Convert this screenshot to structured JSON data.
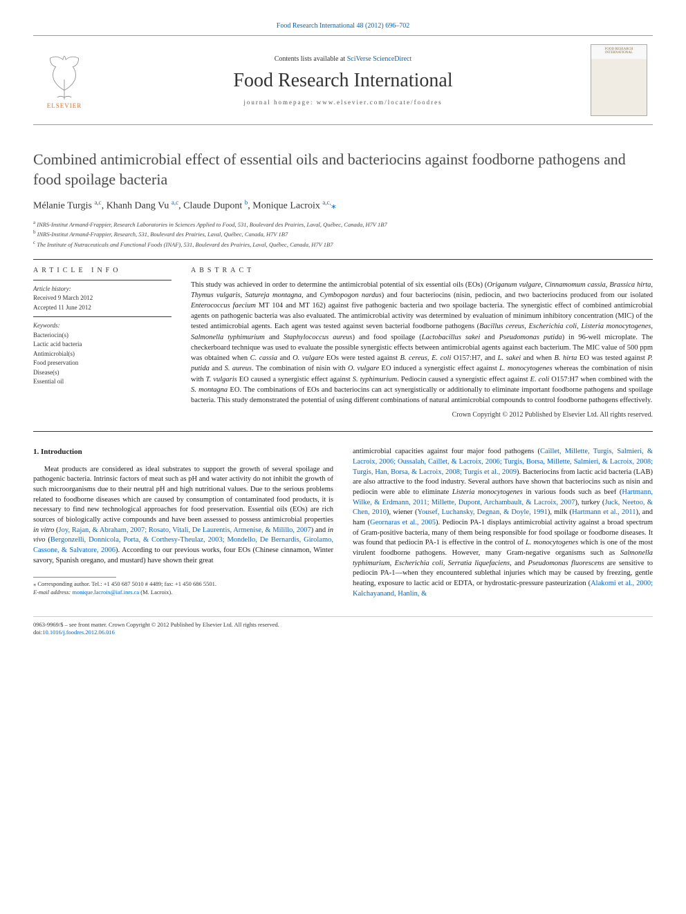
{
  "top_ref": "Food Research International 48 (2012) 696–702",
  "banner": {
    "contents_prefix": "Contents lists available at ",
    "contents_link": "SciVerse ScienceDirect",
    "journal": "Food Research International",
    "homepage_prefix": "journal homepage: ",
    "homepage_url": "www.elsevier.com/locate/foodres",
    "publisher": "ELSEVIER",
    "cover_label": "FOOD RESEARCH INTERNATIONAL"
  },
  "title": "Combined antimicrobial effect of essential oils and bacteriocins against foodborne pathogens and food spoilage bacteria",
  "authors_html": "Mélanie Turgis <sup>a,c</sup>, Khanh Dang Vu <sup>a,c</sup>, Claude Dupont <sup>b</sup>, Monique Lacroix <sup>a,c,</sup><span class=\"star\">⁎</span>",
  "affiliations": [
    {
      "key": "a",
      "text": "INRS-Institut Armand-Frappier, Research Laboratories in Sciences Applied to Food, 531, Boulevard des Prairies, Laval, Québec, Canada, H7V 1B7"
    },
    {
      "key": "b",
      "text": "INRS-Institut Armand-Frappier, Research, 531, Boulevard des Prairies, Laval, Québec, Canada, H7V 1B7"
    },
    {
      "key": "c",
      "text": "The Institute of Nutraceuticals and Functional Foods (INAF), 531, Boulevard des Prairies, Laval, Québec, Canada, H7V 1B7"
    }
  ],
  "article_info": {
    "heading": "article info",
    "history_label": "Article history:",
    "received": "Received 9 March 2012",
    "accepted": "Accepted 11 June 2012",
    "keywords_label": "Keywords:",
    "keywords": [
      "Bacteriocin(s)",
      "Lactic acid bacteria",
      "Antimicrobial(s)",
      "Food preservation",
      "Disease(s)",
      "Essential oil"
    ]
  },
  "abstract": {
    "heading": "abstract",
    "text_html": "This study was achieved in order to determine the antimicrobial potential of six essential oils (EOs) (<em>Origanum vulgare</em>, <em>Cinnamomum cassia</em>, <em>Brassica hirta</em>, <em>Thymus vulgaris</em>, <em>Satureja montagna</em>, and <em>Cymbopogon nardus</em>) and four bacteriocins (nisin, pediocin, and two bacteriocins produced from our isolated <em>Enterococcus faecium</em> MT 104 and MT 162) against five pathogenic bacteria and two spoilage bacteria. The synergistic effect of combined antimicrobial agents on pathogenic bacteria was also evaluated. The antimicrobial activity was determined by evaluation of minimum inhibitory concentration (MIC) of the tested antimicrobial agents. Each agent was tested against seven bacterial foodborne pathogens (<em>Bacillus cereus</em>, <em>Escherichia coli</em>, <em>Listeria monocytogenes</em>, <em>Salmonella typhimurium</em> and <em>Staphylococcus aureus</em>) and food spoilage (<em>Lactobacillus sakei</em> and <em>Pseudomonas putida</em>) in 96-well microplate. The checkerboard technique was used to evaluate the possible synergistic effects between antimicrobial agents against each bacterium. The MIC value of 500 ppm was obtained when <em>C. cassia</em> and <em>O. vulgare</em> EOs were tested against <em>B. cereus</em>, <em>E. coli</em> O157:H7, and <em>L. sakei</em> and when <em>B. hirta</em> EO was tested against <em>P. putida</em> and <em>S. aureus</em>. The combination of nisin with <em>O. vulgare</em> EO induced a synergistic effect against <em>L. monocytogenes</em> whereas the combination of nisin with <em>T. vulgaris</em> EO caused a synergistic effect against <em>S. typhimurium</em>. Pediocin caused a synergistic effect against <em>E. coli</em> O157:H7 when combined with the <em>S. montagna</em> EO. The combinations of EOs and bacteriocins can act synergistically or additionally to eliminate important foodborne pathogens and spoilage bacteria. This study demonstrated the potential of using different combinations of natural antimicrobial compounds to control foodborne pathogens effectively.",
    "copyright": "Crown Copyright © 2012 Published by Elsevier Ltd. All rights reserved."
  },
  "intro": {
    "heading": "1. Introduction",
    "p1_html": "Meat products are considered as ideal substrates to support the growth of several spoilage and pathogenic bacteria. Intrinsic factors of meat such as pH and water activity do not inhibit the growth of such microorganisms due to their neutral pH and high nutritional values. Due to the serious problems related to foodborne diseases which are caused by consumption of contaminated food products, it is necessary to find new technological approaches for food preservation. Essential oils (EOs) are rich sources of biologically active compounds and have been assessed to possess antimicrobial properties <em>in vitro</em> (<a href=\"#\">Joy, Rajan, &amp; Abraham, 2007; Rosato, Vitali, De Laurentis, Armenise, &amp; Milillo, 2007</a>) and <em>in vivo</em> (<a href=\"#\">Bergonzelli, Donnicola, Porta, &amp; Corthesy-Theulaz, 2003; Mondello, De Bernardis, Girolamo, Cassone, &amp; Salvatore, 2006</a>). According to our previous works, four EOs (Chinese cinnamon, Winter savory, Spanish oregano, and mustard) have shown their great",
    "p2_html": "antimicrobial capacities against four major food pathogens (<a href=\"#\">Caillet, Millette, Turgis, Salmieri, &amp; Lacroix, 2006; Oussalah, Caillet, &amp; Lacroix, 2006; Turgis, Borsa, Millette, Salmieri, &amp; Lacroix, 2008; Turgis, Han, Borsa, &amp; Lacroix, 2008; Turgis et al., 2009</a>). Bacteriocins from lactic acid bacteria (LAB) are also attractive to the food industry. Several authors have shown that bacteriocins such as nisin and pediocin were able to eliminate <em>Listeria monocytogenes</em> in various foods such as beef (<a href=\"#\">Hartmann, Wilke, &amp; Erdmann, 2011; Millette, Dupont, Archambault, &amp; Lacroix, 2007</a>), turkey (<a href=\"#\">Juck, Neetoo, &amp; Chen, 2010</a>), wiener (<a href=\"#\">Yousef, Luchansky, Degnan, &amp; Doyle, 1991</a>), milk (<a href=\"#\">Hartmann et al., 2011</a>), and ham (<a href=\"#\">Geornaras et al., 2005</a>). Pediocin PA-1 displays antimicrobial activity against a broad spectrum of Gram-positive bacteria, many of them being responsible for food spoilage or foodborne diseases. It was found that pediocin PA-1 is effective in the control of <em>L. monocytogenes</em> which is one of the most virulent foodborne pathogens. However, many Gram-negative organisms such as <em>Salmonella typhimurium</em>, <em>Escherichia coli</em>, <em>Serratia liquefaciens</em>, and <em>Pseudomonas fluorescens</em> are sensitive to pediocin PA-1—when they encountered sublethal injuries which may be caused by freezing, gentle heating, exposure to lactic acid or EDTA, or hydrostatic-pressure pasteurization (<a href=\"#\">Alakomi et al., 2000; Kalchayanand, Hanlin, &amp;</a>"
  },
  "footnote": {
    "corr": "⁎ Corresponding author. Tel.: +1 450 687 5010 # 4489; fax: +1 450 686 5501.",
    "email_label": "E-mail address: ",
    "email": "monique.lacroix@iaf.inrs.ca",
    "email_paren": " (M. Lacroix)."
  },
  "bottom": {
    "issn": "0963-9969/$ – see front matter. Crown Copyright © 2012 Published by Elsevier Ltd. All rights reserved.",
    "doi_label": "doi:",
    "doi": "10.1016/j.foodres.2012.06.016"
  },
  "colors": {
    "link": "#0066cc",
    "elsevier_orange": "#e37222",
    "text": "#1a1a1a",
    "rule": "#333333"
  }
}
